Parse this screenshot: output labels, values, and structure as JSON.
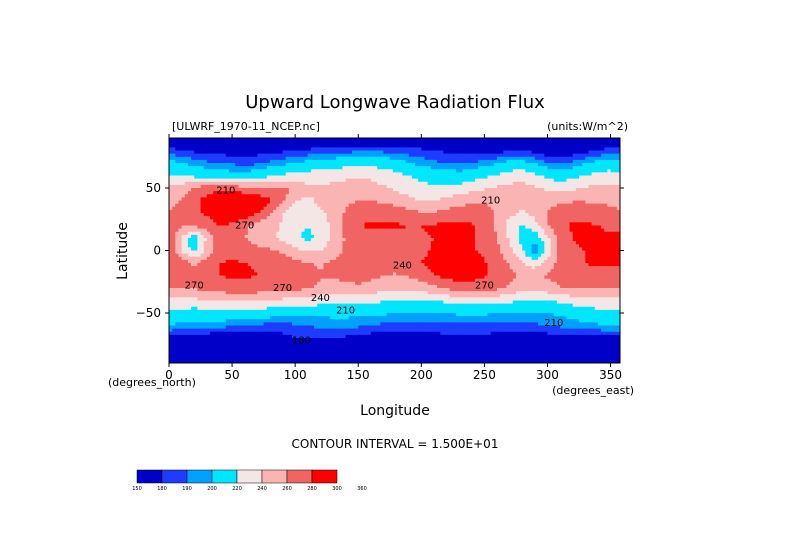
{
  "chart_data": {
    "type": "heatmap",
    "title": "Upward Longwave Radiation Flux",
    "source_label": "[ULWRF_1970-11_NCEP.nc]",
    "units_label": "(units:W/m^2)",
    "xlabel": "Longitude",
    "ylabel": "Latitude",
    "x_units_label": "(degrees_east)",
    "y_units_label": "(degrees_north)",
    "xlim": [
      0,
      357.5
    ],
    "ylim": [
      -90,
      90
    ],
    "x_ticks": [
      0,
      50,
      100,
      150,
      200,
      250,
      300,
      350
    ],
    "x_tick_labels": [
      "0",
      "50",
      "100",
      "150",
      "200",
      "250",
      "300",
      "350"
    ],
    "y_ticks": [
      50,
      0,
      -50
    ],
    "y_tick_labels": [
      "50",
      "0",
      "−50"
    ],
    "contour_interval_text": "CONTOUR INTERVAL = 1.500E+01",
    "contour_labels": [
      {
        "text": "210",
        "lon": 45,
        "lat": 48
      },
      {
        "text": "210",
        "lon": 255,
        "lat": 40
      },
      {
        "text": "270",
        "lon": 60,
        "lat": 20
      },
      {
        "text": "270",
        "lon": 20,
        "lat": -28
      },
      {
        "text": "270",
        "lon": 90,
        "lat": -30
      },
      {
        "text": "270",
        "lon": 250,
        "lat": -28
      },
      {
        "text": "240",
        "lon": 185,
        "lat": -12
      },
      {
        "text": "240",
        "lon": 120,
        "lat": -38
      },
      {
        "text": "210",
        "lon": 140,
        "lat": -48
      },
      {
        "text": "210",
        "lon": 305,
        "lat": -58
      },
      {
        "text": "180",
        "lon": 105,
        "lat": -72
      }
    ],
    "colorbar": {
      "levels": [
        150,
        180,
        190,
        200,
        220,
        240,
        260,
        280,
        300,
        360
      ],
      "level_labels": [
        "150",
        "180",
        "190",
        "200",
        "220",
        "240",
        "260",
        "280",
        "300",
        "360"
      ],
      "colors": [
        "#0000c8",
        "#1e3cff",
        "#00a0ff",
        "#00e6ff",
        "#f5e6e6",
        "#fab4b4",
        "#f06464",
        "#ff0000"
      ]
    },
    "grid": {
      "lon_start": 0,
      "lon_step": 10,
      "lat_start": 90,
      "lat_step": -10,
      "values": [
        [
          165,
          165,
          165,
          165,
          165,
          165,
          165,
          165,
          165,
          165,
          165,
          165,
          165,
          165,
          165,
          165,
          165,
          165,
          165,
          165,
          165,
          165,
          165,
          165,
          165,
          165,
          165,
          165,
          165,
          165,
          165,
          165,
          165,
          165,
          165,
          165
        ],
        [
          185,
          180,
          178,
          176,
          175,
          174,
          174,
          175,
          176,
          178,
          180,
          182,
          183,
          184,
          186,
          187,
          188,
          187,
          186,
          184,
          182,
          180,
          178,
          176,
          175,
          175,
          176,
          178,
          180,
          176,
          172,
          170,
          172,
          176,
          180,
          184
        ],
        [
          205,
          200,
          195,
          192,
          190,
          188,
          186,
          188,
          192,
          196,
          200,
          204,
          206,
          208,
          212,
          215,
          214,
          210,
          206,
          200,
          196,
          192,
          190,
          188,
          190,
          194,
          198,
          204,
          206,
          198,
          190,
          188,
          192,
          198,
          204,
          208
        ],
        [
          222,
          218,
          214,
          212,
          208,
          206,
          206,
          210,
          216,
          222,
          226,
          228,
          232,
          234,
          236,
          238,
          236,
          232,
          226,
          220,
          214,
          210,
          208,
          206,
          210,
          216,
          222,
          228,
          232,
          224,
          214,
          210,
          214,
          220,
          226,
          228
        ],
        [
          246,
          250,
          262,
          270,
          276,
          272,
          264,
          258,
          262,
          266,
          256,
          246,
          242,
          244,
          246,
          248,
          246,
          242,
          236,
          232,
          226,
          222,
          222,
          226,
          232,
          238,
          242,
          246,
          248,
          242,
          236,
          232,
          236,
          242,
          246,
          246
        ],
        [
          252,
          262,
          276,
          286,
          296,
          302,
          304,
          296,
          282,
          266,
          240,
          236,
          244,
          250,
          256,
          260,
          260,
          256,
          250,
          244,
          240,
          240,
          246,
          252,
          256,
          258,
          256,
          252,
          248,
          250,
          254,
          256,
          258,
          258,
          256,
          254
        ],
        [
          262,
          266,
          276,
          282,
          292,
          296,
          294,
          282,
          264,
          242,
          226,
          232,
          236,
          248,
          262,
          272,
          276,
          276,
          272,
          266,
          262,
          262,
          266,
          270,
          272,
          268,
          258,
          246,
          236,
          246,
          262,
          270,
          274,
          274,
          272,
          268
        ],
        [
          276,
          262,
          266,
          272,
          282,
          276,
          264,
          252,
          246,
          238,
          226,
          220,
          226,
          246,
          266,
          280,
          282,
          282,
          282,
          280,
          280,
          282,
          284,
          284,
          282,
          272,
          254,
          232,
          218,
          232,
          258,
          276,
          282,
          282,
          280,
          278
        ],
        [
          282,
          238,
          206,
          244,
          270,
          272,
          260,
          250,
          244,
          236,
          222,
          216,
          224,
          244,
          262,
          272,
          272,
          272,
          274,
          276,
          278,
          280,
          282,
          282,
          282,
          276,
          262,
          236,
          212,
          206,
          236,
          268,
          280,
          282,
          282,
          282
        ],
        [
          280,
          236,
          212,
          246,
          272,
          276,
          270,
          266,
          262,
          256,
          244,
          238,
          240,
          250,
          262,
          268,
          266,
          266,
          268,
          272,
          276,
          282,
          284,
          284,
          282,
          276,
          264,
          244,
          222,
          188,
          226,
          266,
          278,
          280,
          282,
          282
        ],
        [
          282,
          270,
          256,
          270,
          280,
          282,
          280,
          278,
          276,
          272,
          266,
          260,
          258,
          264,
          272,
          276,
          274,
          272,
          272,
          276,
          280,
          286,
          288,
          288,
          286,
          282,
          272,
          258,
          240,
          228,
          246,
          268,
          276,
          280,
          282,
          282
        ],
        [
          276,
          274,
          272,
          276,
          280,
          282,
          282,
          280,
          278,
          276,
          272,
          268,
          262,
          262,
          266,
          268,
          264,
          260,
          258,
          262,
          270,
          280,
          286,
          288,
          286,
          282,
          276,
          266,
          256,
          256,
          262,
          270,
          274,
          276,
          276,
          276
        ],
        [
          260,
          262,
          262,
          266,
          270,
          274,
          274,
          272,
          270,
          268,
          266,
          262,
          256,
          252,
          254,
          256,
          252,
          248,
          244,
          244,
          248,
          256,
          264,
          272,
          272,
          270,
          264,
          256,
          248,
          246,
          252,
          258,
          262,
          262,
          260,
          260
        ],
        [
          236,
          236,
          236,
          238,
          240,
          242,
          242,
          240,
          238,
          236,
          234,
          232,
          228,
          226,
          226,
          226,
          224,
          222,
          220,
          218,
          218,
          220,
          224,
          228,
          230,
          230,
          228,
          224,
          220,
          218,
          220,
          224,
          228,
          232,
          234,
          236
        ],
        [
          214,
          212,
          210,
          210,
          212,
          212,
          212,
          210,
          208,
          208,
          206,
          206,
          204,
          204,
          204,
          204,
          202,
          202,
          200,
          200,
          200,
          200,
          200,
          202,
          202,
          202,
          200,
          200,
          198,
          198,
          200,
          202,
          206,
          210,
          212,
          214
        ],
        [
          200,
          196,
          194,
          194,
          194,
          192,
          190,
          188,
          186,
          186,
          188,
          190,
          192,
          194,
          194,
          192,
          190,
          188,
          188,
          188,
          188,
          188,
          188,
          188,
          188,
          188,
          188,
          186,
          186,
          188,
          190,
          192,
          194,
          196,
          198,
          200
        ],
        [
          176,
          174,
          172,
          172,
          170,
          168,
          166,
          168,
          172,
          176,
          180,
          182,
          182,
          180,
          178,
          176,
          174,
          172,
          170,
          170,
          172,
          174,
          176,
          178,
          178,
          176,
          174,
          172,
          170,
          172,
          174,
          176,
          176,
          176,
          176,
          176
        ],
        [
          160,
          160,
          160,
          160,
          160,
          160,
          160,
          160,
          160,
          160,
          160,
          160,
          160,
          160,
          160,
          160,
          160,
          160,
          160,
          160,
          160,
          160,
          160,
          160,
          160,
          160,
          160,
          160,
          160,
          160,
          160,
          160,
          160,
          160,
          160,
          160
        ]
      ]
    }
  }
}
